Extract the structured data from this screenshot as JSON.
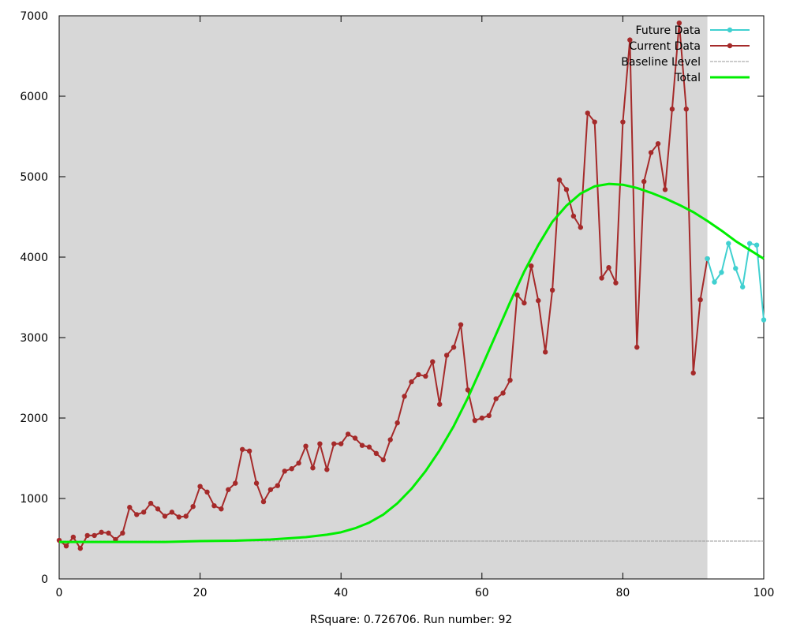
{
  "chart_data": {
    "type": "line",
    "title": "",
    "xlabel": "RSquare: 0.726706. Run number: 92",
    "ylabel": "",
    "xlim": [
      0,
      100
    ],
    "ylim": [
      0,
      7000
    ],
    "x_ticks": [
      "0",
      "20",
      "40",
      "60",
      "80",
      "100"
    ],
    "y_ticks": [
      "0",
      "1000",
      "2000",
      "3000",
      "4000",
      "5000",
      "6000",
      "7000"
    ],
    "grid": false,
    "legend_position": "top-right",
    "shaded_region": {
      "x_from": 0,
      "x_to": 92,
      "color": "#d7d7d7"
    },
    "series": [
      {
        "name": "Future Data",
        "color": "#40d0d0",
        "marker": "point",
        "x": [
          92,
          93,
          94,
          95,
          96,
          97,
          98,
          99,
          100
        ],
        "y": [
          3980,
          3690,
          3810,
          4170,
          3860,
          3630,
          4170,
          4150,
          3220
        ]
      },
      {
        "name": "Current Data",
        "color": "#a52a2a",
        "marker": "point",
        "x": [
          0,
          1,
          2,
          3,
          4,
          5,
          6,
          7,
          8,
          9,
          10,
          11,
          12,
          13,
          14,
          15,
          16,
          17,
          18,
          19,
          20,
          21,
          22,
          23,
          24,
          25,
          26,
          27,
          28,
          29,
          30,
          31,
          32,
          33,
          34,
          35,
          36,
          37,
          38,
          39,
          40,
          41,
          42,
          43,
          44,
          45,
          46,
          47,
          48,
          49,
          50,
          51,
          52,
          53,
          54,
          55,
          56,
          57,
          58,
          59,
          60,
          61,
          62,
          63,
          64,
          65,
          66,
          67,
          68,
          69,
          70,
          71,
          72,
          73,
          74,
          75,
          76,
          77,
          78,
          79,
          80,
          81,
          82,
          83,
          84,
          85,
          86,
          87,
          88,
          89,
          90,
          91,
          92
        ],
        "y": [
          480,
          410,
          520,
          380,
          540,
          540,
          580,
          570,
          490,
          570,
          890,
          800,
          830,
          940,
          870,
          780,
          830,
          770,
          780,
          900,
          1150,
          1080,
          910,
          870,
          1110,
          1190,
          1610,
          1590,
          1190,
          960,
          1110,
          1160,
          1340,
          1370,
          1440,
          1650,
          1380,
          1680,
          1360,
          1680,
          1680,
          1800,
          1750,
          1660,
          1640,
          1560,
          1480,
          1730,
          1940,
          2270,
          2450,
          2540,
          2520,
          2700,
          2170,
          2780,
          2880,
          3160,
          2350,
          1970,
          2000,
          2030,
          2240,
          2310,
          2470,
          3530,
          3430,
          3890,
          3460,
          2820,
          3590,
          4960,
          4840,
          4510,
          4370,
          5790,
          5680,
          3740,
          3870,
          3680,
          5680,
          6700,
          2880,
          4940,
          5300,
          5410,
          4840,
          5840,
          6910,
          5840,
          2560,
          3470,
          3980
        ]
      },
      {
        "name": "Baseline Level",
        "color": "#999999",
        "dash": true,
        "constant": 470
      },
      {
        "name": "Total",
        "color": "#00ee00",
        "x": [
          0,
          5,
          10,
          15,
          20,
          25,
          30,
          35,
          38,
          40,
          42,
          44,
          46,
          48,
          50,
          52,
          54,
          56,
          58,
          60,
          62,
          64,
          66,
          68,
          70,
          72,
          74,
          76,
          78,
          80,
          82,
          84,
          86,
          88,
          90,
          92,
          94,
          96,
          98,
          100
        ],
        "y": [
          460,
          460,
          460,
          460,
          470,
          475,
          490,
          520,
          550,
          580,
          630,
          700,
          800,
          940,
          1120,
          1340,
          1600,
          1900,
          2250,
          2640,
          3040,
          3440,
          3820,
          4150,
          4440,
          4640,
          4790,
          4880,
          4910,
          4900,
          4860,
          4800,
          4730,
          4650,
          4560,
          4450,
          4330,
          4200,
          4090,
          3980
        ]
      }
    ],
    "legend": [
      {
        "label": "Future Data",
        "series": 0
      },
      {
        "label": "Current Data",
        "series": 1
      },
      {
        "label": "Baseline Level",
        "series": 2
      },
      {
        "label": "Total",
        "series": 3
      }
    ]
  }
}
